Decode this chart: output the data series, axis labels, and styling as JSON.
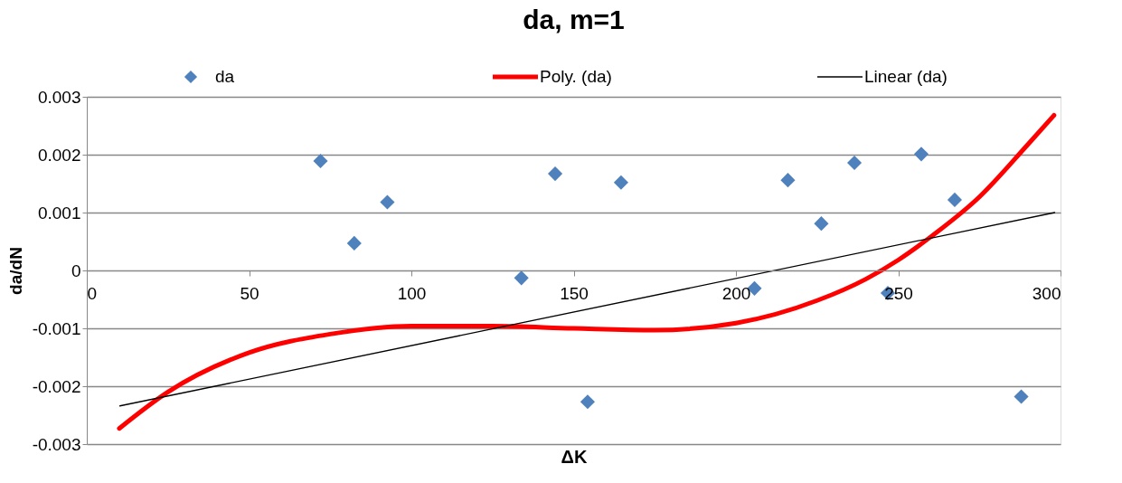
{
  "chart_data": {
    "type": "scatter",
    "title": "da, m=1",
    "xlabel": "ΔK",
    "ylabel": "da/dN",
    "xlim": [
      0,
      300
    ],
    "xticks": [
      0,
      50,
      100,
      150,
      200,
      250,
      300
    ],
    "ylim": [
      -0.003,
      0.003
    ],
    "yticks": [
      -0.003,
      -0.002,
      -0.001,
      0,
      0.001,
      0.002,
      0.003
    ],
    "grid": "y",
    "legend": "top",
    "series": [
      {
        "name": "da",
        "type": "scatter",
        "marker": "diamond",
        "color": "#4f81bd",
        "x": [
          72,
          82.4,
          92.6,
          133.9,
          144.3,
          154.3,
          164.6,
          205.7,
          216,
          226.3,
          236.5,
          246.8,
          257.1,
          267.4,
          287.9
        ],
        "values": [
          0.00189,
          0.00047,
          0.00118,
          -0.00013,
          0.00167,
          -0.00227,
          0.00152,
          -0.00031,
          0.00156,
          0.00081,
          0.00186,
          -0.00039,
          0.00201,
          0.00122,
          -0.00218
        ]
      },
      {
        "name": "Poly. (da)",
        "type": "line",
        "color": "#ff0000",
        "line_style": "solid",
        "x": [
          10,
          25,
          50,
          75,
          100,
          125,
          150,
          175,
          200,
          225,
          240,
          250,
          260,
          275,
          290,
          298
        ],
        "values": [
          -0.00273,
          -0.0021,
          -0.00142,
          -0.0011,
          -0.00096,
          -0.00096,
          -0.001,
          -0.00103,
          -0.00091,
          -0.00052,
          -0.00015,
          0.00018,
          0.00058,
          0.00127,
          0.00218,
          0.00268
        ]
      },
      {
        "name": "Linear (da)",
        "type": "line",
        "color": "#000000",
        "line_style": "solid",
        "x": [
          10.2,
          298.2
        ],
        "values": [
          -0.00234,
          0.001
        ]
      }
    ]
  }
}
